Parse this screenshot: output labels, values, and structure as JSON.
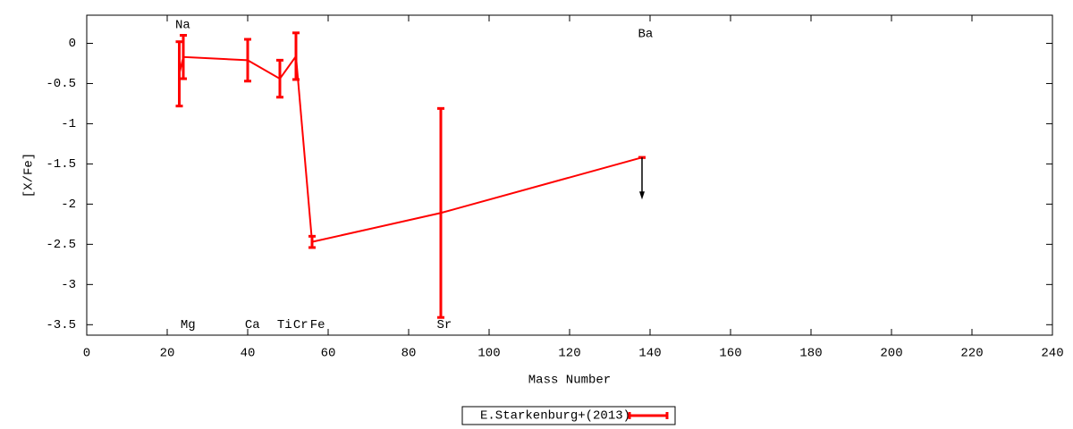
{
  "chart_data": {
    "type": "errorbar_line",
    "xlabel": "Mass Number",
    "ylabel": "[X/Fe]",
    "xlim": [
      0,
      240
    ],
    "xticks": [
      0,
      20,
      40,
      60,
      80,
      100,
      120,
      140,
      160,
      180,
      200,
      220,
      240
    ],
    "ylim": [
      -3.63,
      0.35
    ],
    "yticks": [
      0,
      -0.5,
      -1,
      -1.5,
      -2,
      -2.5,
      -3,
      -3.5
    ],
    "legend": "bottom",
    "series": [
      {
        "name": "E.Starkenburg+(2013)",
        "color": "#ff0000",
        "x": [
          23,
          24,
          40,
          48,
          52,
          56,
          88,
          138
        ],
        "values": [
          -0.38,
          -0.17,
          -0.21,
          -0.44,
          -0.16,
          -2.47,
          -2.11,
          -1.42
        ],
        "errors": [
          0.4,
          0.27,
          0.26,
          0.23,
          0.29,
          0.07,
          1.3,
          0
        ],
        "upper_limits": [
          false,
          false,
          false,
          false,
          false,
          false,
          false,
          true
        ]
      }
    ],
    "annotations": [
      {
        "text": "Na",
        "x": 22,
        "y": 0.23
      },
      {
        "text": "Mg",
        "x": 23.3,
        "y": -3.5
      },
      {
        "text": "Ca",
        "x": 39.3,
        "y": -3.5
      },
      {
        "text": "Ti",
        "x": 47.3,
        "y": -3.5
      },
      {
        "text": "Cr",
        "x": 51.3,
        "y": -3.5
      },
      {
        "text": "Fe",
        "x": 55.5,
        "y": -3.5
      },
      {
        "text": "Sr",
        "x": 87,
        "y": -3.5
      },
      {
        "text": "Ba",
        "x": 137,
        "y": 0.12
      }
    ]
  }
}
